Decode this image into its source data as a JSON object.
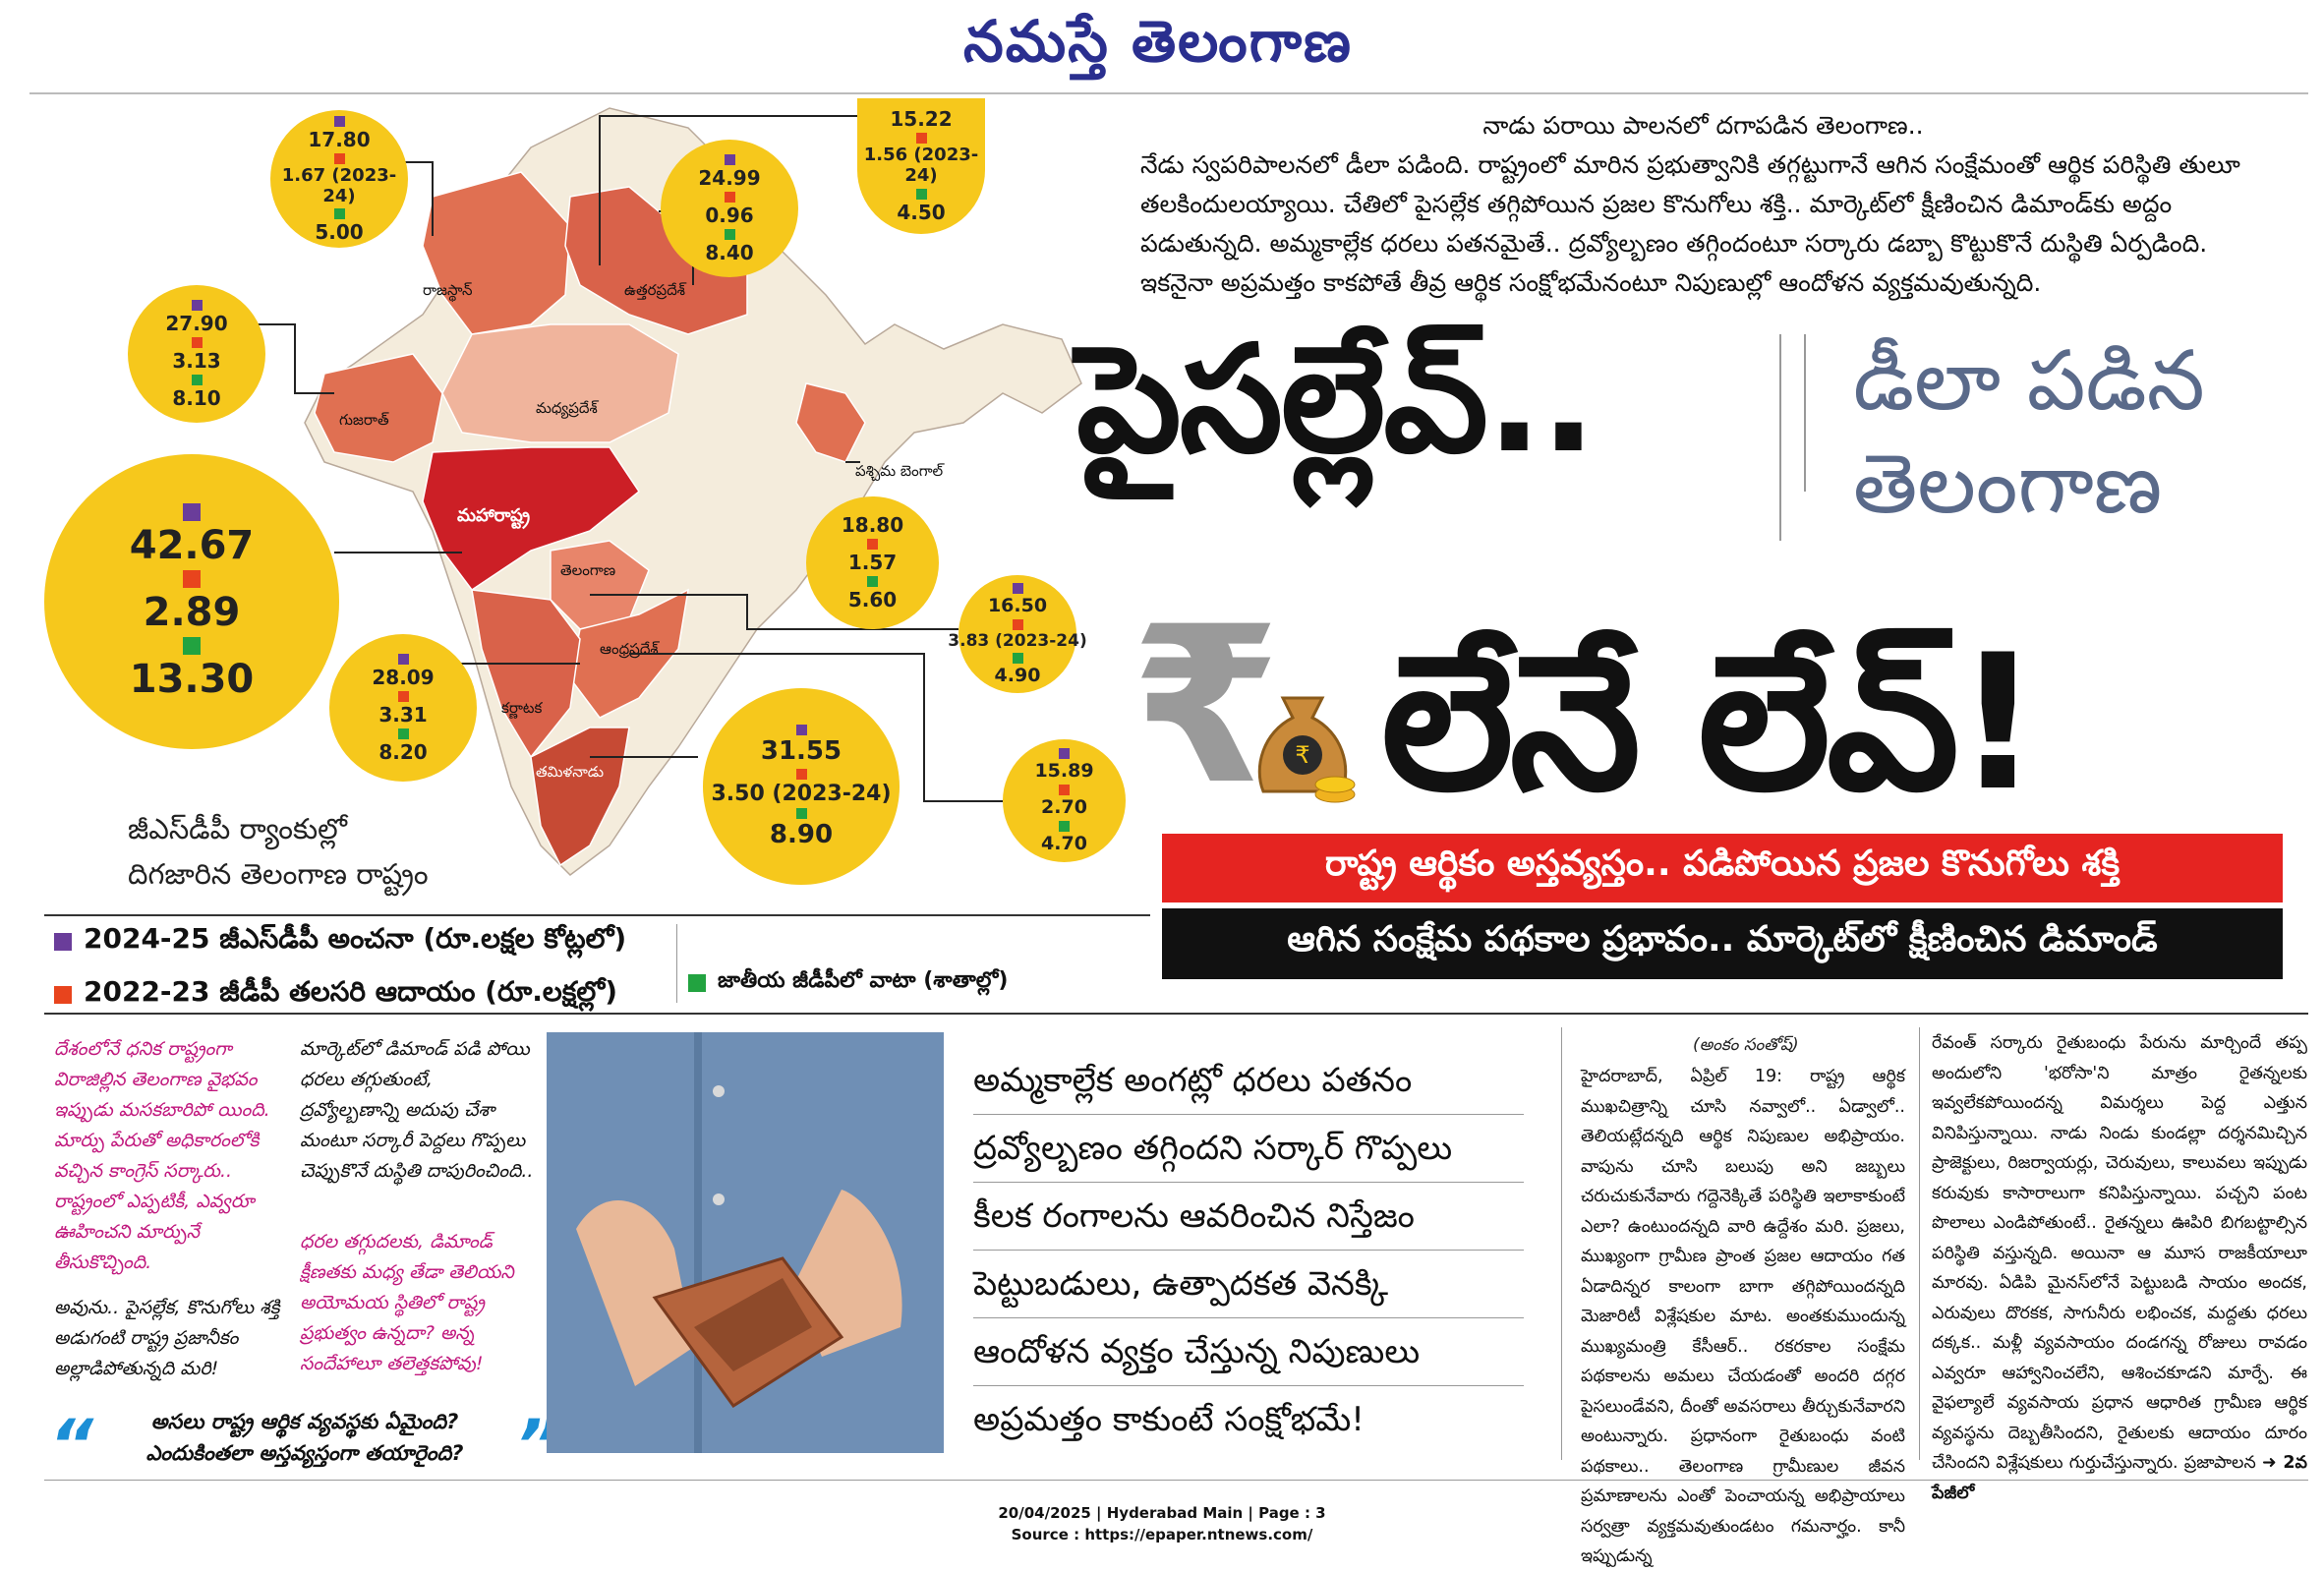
{
  "masthead": "నమస్తే తెలంగాణ",
  "intro": {
    "line1": "నాడు పరాయి పాలనలో దగాపడిన తెలంగాణ..",
    "body": "నేడు స్వపరిపాలనలో డీలా పడింది. రాష్ట్రంలో మారిన ప్రభుత్వానికి తగ్గట్టుగానే ఆగిన సంక్షేమంతో ఆర్థిక పరిస్థితి తులూ తలకిందులయ్యాయి. చేతిలో పైసల్లేక తగ్గిపోయిన ప్రజల కొనుగోలు శక్తి.. మార్కెట్‌లో క్షీణించిన డిమాండ్‌కు అద్దం పడుతున్నది. అమ్మకాల్లేక ధరలు పతనమైతే.. ద్రవ్యోల్బణం తగ్గిందంటూ సర్కారు డబ్బా కొట్టుకొనే దుస్థితి ఏర్పడింది. ఇకనైనా అప్రమత్తం కాకపోతే తీవ్ర ఆర్థిక సంక్షోభమేనంటూ నిపుణుల్లో ఆందోళన వ్యక్తమవుతున్నది."
  },
  "headline": {
    "line1": "పైసల్లేవ్..",
    "side1": "డీలా పడిన",
    "side2": "తెలంగాణ",
    "line2": "లేనే లేవ్!",
    "rupee": "₹"
  },
  "banners": {
    "red": "రాష్ట్ర ఆర్థికం అస్తవ్యస్తం.. పడిపోయిన ప్రజల కొనుగోలు శక్తి",
    "black": "ఆగిన సంక్షేమ పథకాల ప్రభావం.. మార్కెట్‌లో క్షీణించిన డిమాండ్"
  },
  "map": {
    "states": [
      "రాజస్థాన్",
      "ఉత్తరప్రదేశ్",
      "గుజరాత్",
      "మధ్యప్రదేశ్",
      "పశ్చిమ బెంగాల్",
      "మహారాష్ట్ర",
      "తెలంగాణ",
      "ఆంధ్రప్రదేశ్",
      "కర్ణాటక",
      "తమిళనాడు"
    ],
    "colors": {
      "dark": "#cc1f26",
      "mid": "#e07052",
      "light": "#f0b49c",
      "pale": "#f4ecdc",
      "circle": "#f6c81c"
    },
    "circles": [
      {
        "a": "17.80",
        "b": "1.67 (2023-24)",
        "c": "5.00"
      },
      {
        "a": "24.99",
        "b": "0.96",
        "c": "8.40"
      },
      {
        "a": "15.22",
        "b": "1.56 (2023-24)",
        "c": "4.50"
      },
      {
        "a": "27.90",
        "b": "3.13",
        "c": "8.10"
      },
      {
        "a": "42.67",
        "b": "2.89",
        "c": "13.30"
      },
      {
        "a": "18.80",
        "b": "1.57",
        "c": "5.60"
      },
      {
        "a": "16.50",
        "b": "3.83 (2023-24)",
        "c": "4.90"
      },
      {
        "a": "28.09",
        "b": "3.31",
        "c": "8.20"
      },
      {
        "a": "31.55",
        "b": "3.50 (2023-24)",
        "c": "8.90"
      },
      {
        "a": "15.89",
        "b": "2.70",
        "c": "4.70"
      }
    ]
  },
  "caption": {
    "line1": "జీఎస్‌డీపీ ర్యాంకుల్లో",
    "line2": "దిగజారిన తెలంగాణ రాష్ట్రం"
  },
  "legend": {
    "purple": "2024-25 జీఎస్‌డీపీ అంచనా (రూ.లక్షల కోట్లలో)",
    "orange": "2022-23 జీడీపీ తలసరి ఆదాయం (రూ.లక్షల్లో)",
    "green": "జాతీయ జీడీపీలో వాటా (శాతాల్లో)"
  },
  "side": {
    "pink1": "దేశంలోనే ధనిక రాష్ట్రంగా విరాజిల్లిన తెలంగాణ వైభవం ఇప్పుడు మసకబారిపో యింది. మార్పు పేరుతో అధికారంలోకి వచ్చిన కాంగ్రెస్ సర్కారు.. రాష్ట్రంలో ఎప్పటికీ, ఎవ్వరూ ఊహించని మార్పునే తీసుకొచ్చింది.",
    "col2": "మార్కెట్‌లో డిమాండ్ పడి పోయి ధరలు తగ్గుతుంటే, ద్రవ్యోల్బణాన్ని అదుపు చేశా మంటూ సర్కారీ పెద్దలు గొప్పలు చెప్పుకొనే దుస్థితి దాపురించింది..",
    "pink2": "ధరల తగ్గుదలకు, డిమాండ్ క్షీణతకు మధ్య తేడా తెలియని అయోమయ స్థితిలో రాష్ట్ర ప్రభుత్వం ఉన్నదా? అన్న సందేహాలూ తలెత్తకపోవు!",
    "bk2": "అవును.. పైసల్లేక, కొనుగోలు శక్తి అడుగంటి రాష్ట్ర ప్రజానీకం అల్లాడిపోతున్నది మరి!",
    "quote1": "అసలు రాష్ట్ర ఆర్థిక వ్యవస్థకు ఏమైంది?",
    "quote2": "ఎందుకింతలా అస్తవ్యస్తంగా తయారైంది?"
  },
  "pullquote": [
    "అమ్మకాల్లేక అంగట్లో ధరలు పతనం",
    "ద్రవ్యోల్బణం తగ్గిందని సర్కార్ గొప్పలు",
    "కీలక రంగాలను ఆవరించిన నిస్తేజం",
    "పెట్టుబడులు, ఉత్పాదకత వెనక్కి",
    "ఆందోళన వ్యక్తం చేస్తున్న నిపుణులు",
    "అప్రమత్తం కాకుంటే సంక్షోభమే!"
  ],
  "article": {
    "byline": "(అంకం సంతోష్)",
    "col1": "హైదరాబాద్, ఏప్రిల్ 19: రాష్ట్ర ఆర్థిక ముఖచిత్రాన్ని చూసి నవ్వాలో.. ఏడ్వాలో.. తెలియట్లేదన్నది ఆర్థిక నిపుణుల అభిప్రాయం. వాపును చూసి బలుపు అని జబ్బలు చరుచుకునేవారు గద్దెనెక్కితే పరిస్థితి ఇలాకాకుంటే ఎలా? ఉంటుందన్నది వారి ఉద్దేశం మరి. ప్రజలు, ముఖ్యంగా గ్రామీణ ప్రాంత ప్రజల ఆదాయం గత ఏడాదిన్నర కాలంగా బాగా తగ్గిపోయిందన్నది మెజారిటీ విశ్లేషకుల మాట. అంతకుముందున్న ముఖ్యమంత్రి కేసీఆర్.. రకరకాల సంక్షేమ పథకాలను అమలు చేయడంతో అందరి దగ్గర పైసలుండేవని, దీంతో అవసరాలు తీర్చుకునేవారని అంటున్నారు. ప్రధానంగా రైతుబంధు వంటి పథకాలు.. తెలంగాణ గ్రామీణుల జీవన ప్రమాణాలను ఎంతో పెంచాయన్న అభిప్రాయాలు సర్వత్రా వ్యక్తమవుతుండటం గమనార్హం. కానీ ఇప్పుడున్న",
    "col2": "రేవంత్ సర్కారు రైతుబంధు పేరును మార్చిందే తప్ప అందులోని 'భరోసా'ని మాత్రం రైతన్నలకు ఇవ్వలేకపోయిందన్న విమర్శలు పెద్ద ఎత్తున వినిపిస్తున్నాయి. నాడు నిండు కుండల్లా దర్శనమిచ్చిన ప్రాజెక్టులు, రిజర్వాయర్లు, చెరువులు, కాలువలు ఇప్పుడు కరువుకు కాసారాలుగా కనిపిస్తున్నాయి. పచ్చని పంట పొలాలు ఎండిపోతుంటే.. రైతన్నలు ఊపిరి బిగబట్టాల్సిన పరిస్థితి వస్తున్నది. అయినా ఆ మూస రాజకీయాలూ మారవు. ఏడిపి మైనస్‌లోనే పెట్టుబడి సాయం అందక, ఎరువులు దొరకక, సాగునీరు లభించక, మద్దతు ధరలు దక్కక.. మళ్లీ వ్యవసాయం దండగన్న రోజులు రావడం ఎవ్వరూ ఆహ్వానించలేని, ఆశించకూడని మార్పే. ఈ వైఫల్యాలే వ్యవసాయ ప్రధాన ఆధారిత గ్రామీణ ఆర్థిక వ్యవస్థను దెబ్బతీసిందని, రైతులకు ఆదాయం దూరం చేసిందని విశ్లేషకులు గుర్తుచేస్తున్నారు. ప్రజాపాలన",
    "continued": "2వ పేజీలో"
  },
  "footer": {
    "line1": "20/04/2025 | Hyderabad Main | Page : 3",
    "line2": "Source : https://epaper.ntnews.com/"
  }
}
